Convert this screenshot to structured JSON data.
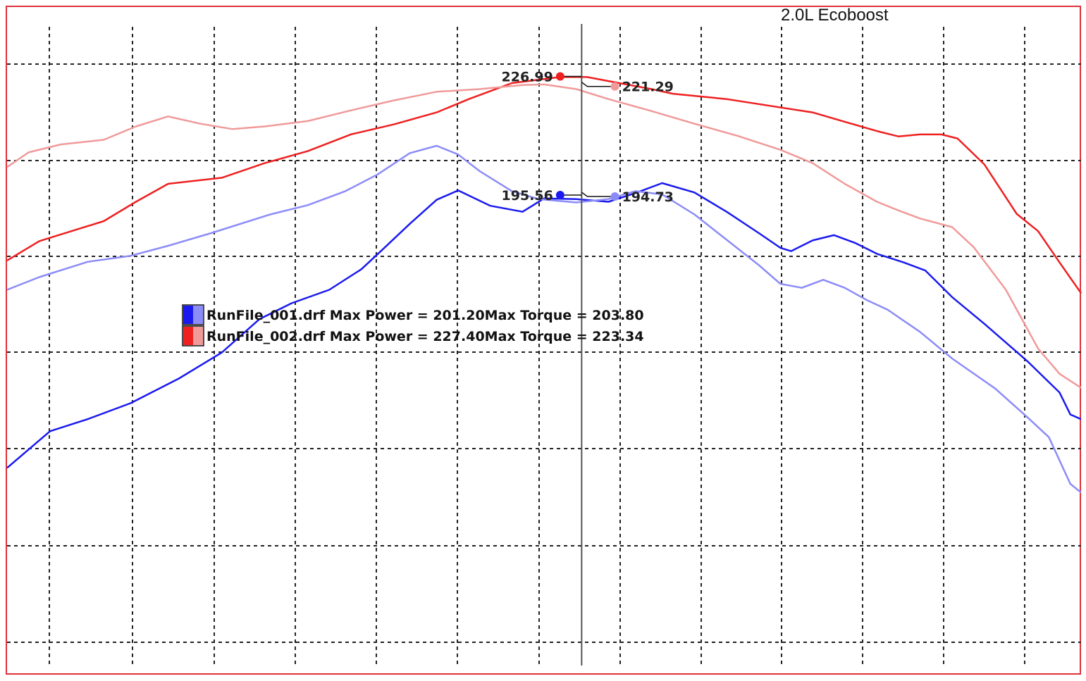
{
  "title": "2.0L Ecoboost",
  "chart_data": {
    "type": "line",
    "title": "2.0L Ecoboost",
    "xlabel": "",
    "ylabel": "",
    "x_range": [
      0,
      100
    ],
    "y_range": [
      0,
      100
    ],
    "grid": true,
    "cursor_x": 53.5,
    "series": [
      {
        "name": "RunFile_001.drf",
        "color": "#1a1af0",
        "legend_color": "#1a1af0",
        "style": "solid",
        "points": [
          [
            0,
            30.9
          ],
          [
            4,
            36.4
          ],
          [
            7.5,
            38.2
          ],
          [
            11.5,
            40.6
          ],
          [
            16,
            44.3
          ],
          [
            20,
            48.2
          ],
          [
            23.5,
            53.2
          ],
          [
            26.5,
            55.6
          ],
          [
            30,
            57.6
          ],
          [
            33,
            60.7
          ],
          [
            35,
            63.7
          ],
          [
            37.5,
            67.5
          ],
          [
            40,
            71.1
          ],
          [
            42,
            72.5
          ],
          [
            45,
            70.2
          ],
          [
            48,
            69.3
          ],
          [
            50,
            71.3
          ],
          [
            53,
            71.2
          ],
          [
            56,
            70.8
          ],
          [
            58.5,
            72.1
          ],
          [
            61,
            73.6
          ],
          [
            64,
            72.2
          ],
          [
            67,
            69.3
          ],
          [
            70,
            66.1
          ],
          [
            72,
            63.9
          ],
          [
            73,
            63.4
          ],
          [
            75,
            65
          ],
          [
            77,
            65.8
          ],
          [
            79,
            64.6
          ],
          [
            81,
            63
          ],
          [
            83.5,
            61.7
          ],
          [
            85.5,
            60.5
          ],
          [
            88,
            56.5
          ],
          [
            91,
            52.5
          ],
          [
            95,
            46.9
          ],
          [
            98,
            42.2
          ],
          [
            99,
            38.9
          ],
          [
            100,
            38.2
          ]
        ],
        "marker": {
          "x": 51.5,
          "y": 71.8,
          "label": "195.56"
        }
      },
      {
        "name": "RunFile_001.drf",
        "color": "#8c8cf8",
        "legend_color": "#8c8cf8",
        "style": "solid",
        "points": [
          [
            0,
            57.6
          ],
          [
            3,
            59.5
          ],
          [
            7.5,
            61.8
          ],
          [
            11.5,
            62.7
          ],
          [
            15,
            64.2
          ],
          [
            19,
            66.1
          ],
          [
            24.5,
            68.9
          ],
          [
            28,
            70.3
          ],
          [
            31.5,
            72.4
          ],
          [
            34.5,
            74.9
          ],
          [
            37.5,
            78.1
          ],
          [
            40,
            79.2
          ],
          [
            42,
            77.9
          ],
          [
            44,
            75.4
          ],
          [
            47,
            72.4
          ],
          [
            49.5,
            71.2
          ],
          [
            53,
            70.7
          ],
          [
            56,
            71.2
          ],
          [
            58.5,
            72.4
          ],
          [
            61,
            71.9
          ],
          [
            64,
            68.9
          ],
          [
            67,
            65.1
          ],
          [
            70,
            61.3
          ],
          [
            72,
            58.5
          ],
          [
            74,
            57.9
          ],
          [
            76,
            59.1
          ],
          [
            78,
            57.9
          ],
          [
            80,
            56.1
          ],
          [
            82,
            54.6
          ],
          [
            85,
            51.3
          ],
          [
            88,
            47.3
          ],
          [
            92,
            42.8
          ],
          [
            95,
            38.5
          ],
          [
            97,
            35.5
          ],
          [
            99,
            28.5
          ],
          [
            100,
            27.2
          ]
        ],
        "marker": {
          "x": 56.6,
          "y": 71.6,
          "label": "194.73"
        }
      },
      {
        "name": "RunFile_002.drf",
        "color": "#ee2020",
        "legend_color": "#ee2020",
        "style": "solid",
        "points": [
          [
            0,
            62
          ],
          [
            3,
            64.9
          ],
          [
            6,
            66.4
          ],
          [
            9,
            67.9
          ],
          [
            12,
            70.8
          ],
          [
            15,
            73.5
          ],
          [
            20,
            74.4
          ],
          [
            24,
            76.6
          ],
          [
            28,
            78.4
          ],
          [
            32,
            80.9
          ],
          [
            36,
            82.4
          ],
          [
            40,
            84.2
          ],
          [
            43,
            86.2
          ],
          [
            47,
            88.6
          ],
          [
            51.5,
            89.5
          ],
          [
            54,
            89.5
          ],
          [
            57,
            88.6
          ],
          [
            60,
            87.7
          ],
          [
            62,
            87
          ],
          [
            64.5,
            86.6
          ],
          [
            67,
            86.2
          ],
          [
            71,
            85.2
          ],
          [
            75,
            84.2
          ],
          [
            78,
            82.8
          ],
          [
            81,
            81.4
          ],
          [
            83,
            80.6
          ],
          [
            85,
            80.9
          ],
          [
            87,
            80.9
          ],
          [
            88.5,
            80.3
          ],
          [
            91,
            76.4
          ],
          [
            94,
            69
          ],
          [
            96,
            66.4
          ],
          [
            98,
            61.7
          ],
          [
            100,
            57.1
          ]
        ],
        "marker": {
          "x": 51.5,
          "y": 89.6,
          "label": "226.99"
        }
      },
      {
        "name": "RunFile_002.drf",
        "color": "#f09a9a",
        "legend_color": "#f09a9a",
        "style": "solid",
        "points": [
          [
            0,
            76
          ],
          [
            2,
            78.2
          ],
          [
            5,
            79.4
          ],
          [
            9,
            80.1
          ],
          [
            12,
            82.1
          ],
          [
            15,
            83.6
          ],
          [
            18,
            82.5
          ],
          [
            21,
            81.7
          ],
          [
            24,
            82.1
          ],
          [
            28,
            82.9
          ],
          [
            32,
            84.5
          ],
          [
            36,
            86
          ],
          [
            40,
            87.3
          ],
          [
            44,
            87.7
          ],
          [
            48,
            88.3
          ],
          [
            50,
            88.4
          ],
          [
            53,
            87.7
          ],
          [
            56,
            86.2
          ],
          [
            60,
            84.4
          ],
          [
            64,
            82.5
          ],
          [
            68,
            80.7
          ],
          [
            72,
            78.6
          ],
          [
            75,
            76.6
          ],
          [
            78,
            73.5
          ],
          [
            81,
            70.8
          ],
          [
            83,
            69.5
          ],
          [
            85,
            68.3
          ],
          [
            88,
            67
          ],
          [
            90,
            64
          ],
          [
            93,
            57.6
          ],
          [
            96,
            48.8
          ],
          [
            98,
            45
          ],
          [
            100,
            42.9
          ]
        ],
        "marker": {
          "x": 56.6,
          "y": 88.1,
          "label": "221.29"
        }
      }
    ],
    "legend": [
      {
        "file": "RunFile_001.drf",
        "text": "RunFile_001.drf Max Power = 201.20Max Torque = 203.80",
        "colors": [
          "#1a1af0",
          "#8c8cf8"
        ]
      },
      {
        "file": "RunFile_002.drf",
        "text": "RunFile_002.drf Max Power = 227.40Max Torque = 223.34",
        "colors": [
          "#ee2020",
          "#f09a9a"
        ]
      }
    ],
    "legend_placement": "center-left"
  }
}
